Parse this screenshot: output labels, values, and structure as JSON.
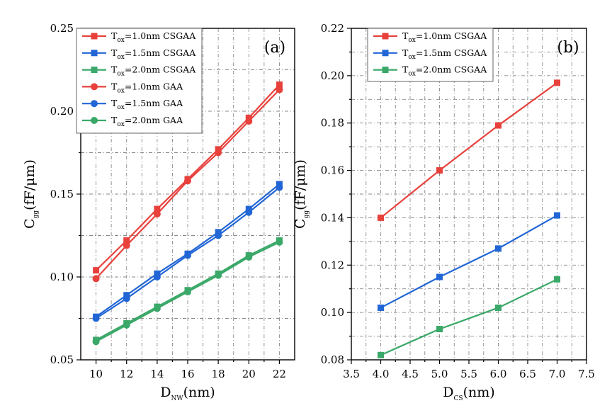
{
  "colors": {
    "red": "#e8413c",
    "blue": "#2266d6",
    "green": "#3aa868"
  },
  "chart_data": [
    {
      "type": "line",
      "panel_tag": "(a)",
      "xlabel_main": "D",
      "xlabel_sub": "NW",
      "xlabel_unit": "(nm)",
      "ylabel_main": "C",
      "ylabel_sub": "gg",
      "ylabel_unit": "(fF/μm)",
      "xlim": [
        9,
        23
      ],
      "ylim": [
        0.05,
        0.25
      ],
      "xticks": [
        "10",
        "12",
        "14",
        "16",
        "18",
        "20",
        "22"
      ],
      "xtick_values": [
        10,
        12,
        14,
        16,
        18,
        20,
        22
      ],
      "yticks": [
        "0.05",
        "0.10",
        "0.15",
        "0.20",
        "0.25"
      ],
      "ytick_values": [
        0.05,
        0.1,
        0.15,
        0.2,
        0.25
      ],
      "grid": true,
      "legend_position": "top-left",
      "x": [
        10,
        12,
        14,
        16,
        18,
        20,
        22
      ],
      "series": [
        {
          "name_main": "T",
          "name_sub": "ox",
          "name_rest": "=1.0nm CSGAA",
          "color": "red",
          "marker": "square",
          "values": [
            0.104,
            0.122,
            0.141,
            0.159,
            0.177,
            0.196,
            0.216
          ]
        },
        {
          "name_main": "T",
          "name_sub": "ox",
          "name_rest": "=1.5nm CSGAA",
          "color": "blue",
          "marker": "square",
          "values": [
            0.076,
            0.089,
            0.102,
            0.114,
            0.127,
            0.141,
            0.156
          ]
        },
        {
          "name_main": "T",
          "name_sub": "ox",
          "name_rest": "=2.0nm CSGAA",
          "color": "green",
          "marker": "square",
          "values": [
            0.062,
            0.072,
            0.082,
            0.092,
            0.102,
            0.113,
            0.122
          ]
        },
        {
          "name_main": "T",
          "name_sub": "ox",
          "name_rest": "=1.0nm GAA",
          "color": "red",
          "marker": "circle",
          "values": [
            0.099,
            0.119,
            0.138,
            0.158,
            0.175,
            0.194,
            0.213
          ]
        },
        {
          "name_main": "T",
          "name_sub": "ox",
          "name_rest": "=1.5nm GAA",
          "color": "blue",
          "marker": "circle",
          "values": [
            0.075,
            0.087,
            0.1,
            0.113,
            0.125,
            0.139,
            0.154
          ]
        },
        {
          "name_main": "T",
          "name_sub": "ox",
          "name_rest": "=2.0nm GAA",
          "color": "green",
          "marker": "circle",
          "values": [
            0.061,
            0.071,
            0.081,
            0.091,
            0.101,
            0.112,
            0.121
          ]
        }
      ]
    },
    {
      "type": "line",
      "panel_tag": "(b)",
      "xlabel_main": "D",
      "xlabel_sub": "CS",
      "xlabel_unit": "(nm)",
      "ylabel_main": "C",
      "ylabel_sub": "gg",
      "ylabel_unit": "(fF/μm)",
      "xlim": [
        3.5,
        7.5
      ],
      "ylim": [
        0.08,
        0.22
      ],
      "xticks": [
        "3.5",
        "4.0",
        "4.5",
        "5.0",
        "5.5",
        "6.0",
        "6.5",
        "7.0",
        "7.5"
      ],
      "xtick_values": [
        3.5,
        4.0,
        4.5,
        5.0,
        5.5,
        6.0,
        6.5,
        7.0,
        7.5
      ],
      "yticks": [
        "0.08",
        "0.10",
        "0.12",
        "0.14",
        "0.16",
        "0.18",
        "0.20",
        "0.22"
      ],
      "ytick_values": [
        0.08,
        0.1,
        0.12,
        0.14,
        0.16,
        0.18,
        0.2,
        0.22
      ],
      "grid": true,
      "legend_position": "top-left",
      "x": [
        4.0,
        5.0,
        6.0,
        7.0
      ],
      "series": [
        {
          "name_main": "T",
          "name_sub": "ox",
          "name_rest": "=1.0nm CSGAA",
          "color": "red",
          "marker": "square",
          "values": [
            0.14,
            0.16,
            0.179,
            0.197
          ]
        },
        {
          "name_main": "T",
          "name_sub": "ox",
          "name_rest": "=1.5nm CSGAA",
          "color": "blue",
          "marker": "square",
          "values": [
            0.102,
            0.115,
            0.127,
            0.141
          ]
        },
        {
          "name_main": "T",
          "name_sub": "ox",
          "name_rest": "=2.0nm CSGAA",
          "color": "green",
          "marker": "square",
          "values": [
            0.082,
            0.093,
            0.102,
            0.114
          ]
        }
      ]
    }
  ]
}
